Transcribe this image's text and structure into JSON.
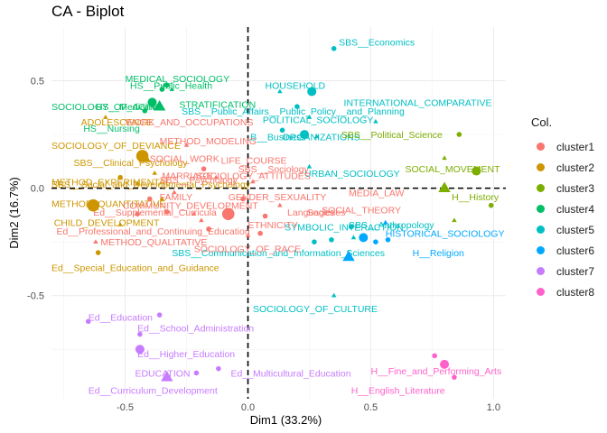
{
  "chart_data": {
    "type": "scatter",
    "title": "CA - Biplot",
    "xlabel": "Dim1 (33.2%)",
    "ylabel": "Dim2 (16.7%)",
    "xlim": [
      -0.8,
      1.05
    ],
    "ylim": [
      -0.98,
      0.75
    ],
    "xticks": [
      -0.5,
      0.0,
      0.5,
      1.0
    ],
    "xtick_labels": [
      "-0.5",
      "0.0",
      "0.5",
      "1.0"
    ],
    "yticks": [
      -0.5,
      0.0,
      0.5
    ],
    "ytick_labels": [
      "-0.5",
      "0.0",
      "0.5"
    ],
    "grid": true,
    "legend_position": "right",
    "legend_title": "Col.",
    "clusters": [
      {
        "name": "cluster1",
        "color": "#F8766D"
      },
      {
        "name": "cluster2",
        "color": "#CD9600"
      },
      {
        "name": "cluster3",
        "color": "#7CAE00"
      },
      {
        "name": "cluster4",
        "color": "#00BE67"
      },
      {
        "name": "cluster5",
        "color": "#00BFC4"
      },
      {
        "name": "cluster6",
        "color": "#00A9FF"
      },
      {
        "name": "cluster7",
        "color": "#C77CFF"
      },
      {
        "name": "cluster8",
        "color": "#FF61CC"
      }
    ],
    "labels": [
      {
        "text": "SBS__Economics",
        "x": 0.37,
        "y": 0.68,
        "cluster": "cluster5"
      },
      {
        "text": "HOUSEHOLD",
        "x": 0.07,
        "y": 0.48,
        "cluster": "cluster5"
      },
      {
        "text": "INTERNATIONAL_COMPARATIVE",
        "x": 0.39,
        "y": 0.4,
        "cluster": "cluster5"
      },
      {
        "text": "SBS__Public_Affairs__Public_Policy__and_Planning",
        "x": -0.27,
        "y": 0.36,
        "cluster": "cluster5"
      },
      {
        "text": "POLITICAL_SOCIOLOGY",
        "x": 0.06,
        "y": 0.32,
        "cluster": "cluster5"
      },
      {
        "text": "ORGANIZATIONS",
        "x": 0.14,
        "y": 0.24,
        "cluster": "cluster5"
      },
      {
        "text": "B__Business",
        "x": 0.01,
        "y": 0.24,
        "cluster": "cluster5"
      },
      {
        "text": "URBAN_SOCIOLOGY",
        "x": 0.23,
        "y": 0.07,
        "cluster": "cluster5"
      },
      {
        "text": "SYMBOLIC_INTERACTION",
        "x": 0.15,
        "y": -0.18,
        "cluster": "cluster5"
      },
      {
        "text": "SBS__Anthropology",
        "x": 0.41,
        "y": -0.17,
        "cluster": "cluster5"
      },
      {
        "text": "SBS__Communication_and_Information_Sciences",
        "x": -0.31,
        "y": -0.3,
        "cluster": "cluster5"
      },
      {
        "text": "SOCIOLOGY_OF_CULTURE",
        "x": 0.02,
        "y": -0.56,
        "cluster": "cluster5"
      },
      {
        "text": "H__Religion",
        "x": 0.67,
        "y": -0.3,
        "cluster": "cluster6"
      },
      {
        "text": "HISTORICAL_SOCIOLOGY",
        "x": 0.56,
        "y": -0.21,
        "cluster": "cluster6"
      },
      {
        "text": "SBS__Political_Science",
        "x": 0.38,
        "y": 0.25,
        "cluster": "cluster3"
      },
      {
        "text": "SOCIAL_MOVEMENT",
        "x": 0.64,
        "y": 0.09,
        "cluster": "cluster3"
      },
      {
        "text": "H__History",
        "x": 0.83,
        "y": -0.04,
        "cluster": "cluster3"
      },
      {
        "text": "MEDICAL_SOCIOLOGY",
        "x": -0.5,
        "y": 0.51,
        "cluster": "cluster4"
      },
      {
        "text": "HS__Public_Health",
        "x": -0.48,
        "y": 0.48,
        "cluster": "cluster4"
      },
      {
        "text": "STRATIFICATION",
        "x": -0.28,
        "y": 0.39,
        "cluster": "cluster4"
      },
      {
        "text": "SOCIOLOGY_OF_AGING",
        "x": -0.8,
        "y": 0.38,
        "cluster": "cluster4"
      },
      {
        "text": "HS__Medicine",
        "x": -0.62,
        "y": 0.38,
        "cluster": "cluster4"
      },
      {
        "text": "HS__Nursing",
        "x": -0.67,
        "y": 0.28,
        "cluster": "cluster4"
      },
      {
        "text": "ADOLESCENCE",
        "x": -0.68,
        "y": 0.31,
        "cluster": "cluster2"
      },
      {
        "text": "SOCIOLOGY_OF_DEVIANCE",
        "x": -0.8,
        "y": 0.2,
        "cluster": "cluster2"
      },
      {
        "text": "SBS__Clinical_Psychology",
        "x": -0.71,
        "y": 0.12,
        "cluster": "cluster2"
      },
      {
        "text": "METHOD_EXPERIMENTAL",
        "x": -0.8,
        "y": 0.03,
        "cluster": "cluster2"
      },
      {
        "text": "SBS__Social_and_Developmental_Psychology",
        "x": -0.8,
        "y": 0.02,
        "cluster": "cluster2"
      },
      {
        "text": "METHOD_QUANTITATIVE",
        "x": -0.8,
        "y": -0.07,
        "cluster": "cluster2"
      },
      {
        "text": "CHILD_DEVELOPMENT",
        "x": -0.79,
        "y": -0.16,
        "cluster": "cluster2"
      },
      {
        "text": "Ed__Special_Education_and_Guidance",
        "x": -0.8,
        "y": -0.37,
        "cluster": "cluster2"
      },
      {
        "text": "WORK_AND_OCCUPATIONS",
        "x": -0.5,
        "y": 0.31,
        "cluster": "cluster1"
      },
      {
        "text": "METHOD_MODELING",
        "x": -0.36,
        "y": 0.22,
        "cluster": "cluster1"
      },
      {
        "text": "SOCIAL_WORK",
        "x": -0.4,
        "y": 0.14,
        "cluster": "cluster1"
      },
      {
        "text": "LIFE_COURSE",
        "x": -0.11,
        "y": 0.13,
        "cluster": "cluster1"
      },
      {
        "text": "SBS__Sociology",
        "x": -0.04,
        "y": 0.09,
        "cluster": "cluster1"
      },
      {
        "text": "MARRIAGE",
        "x": -0.35,
        "y": 0.06,
        "cluster": "cluster1"
      },
      {
        "text": "SBS__Psychology",
        "x": -0.36,
        "y": 0.04,
        "cluster": "cluster1"
      },
      {
        "text": "SOCIOLOGY_ATTITUDES",
        "x": -0.21,
        "y": 0.06,
        "cluster": "cluster1"
      },
      {
        "text": "FAMILY",
        "x": -0.36,
        "y": -0.04,
        "cluster": "cluster1"
      },
      {
        "text": "GENDER_SEXUALITY",
        "x": -0.08,
        "y": -0.04,
        "cluster": "cluster1"
      },
      {
        "text": "MEDIA_LAW",
        "x": 0.41,
        "y": -0.02,
        "cluster": "cluster1"
      },
      {
        "text": "COMMUNITY_DEVELOPMENT",
        "x": -0.51,
        "y": -0.08,
        "cluster": "cluster1"
      },
      {
        "text": "Ed__Supplemental_Curricula",
        "x": -0.63,
        "y": -0.11,
        "cluster": "cluster1"
      },
      {
        "text": "Languages",
        "x": 0.16,
        "y": -0.11,
        "cluster": "cluster1"
      },
      {
        "text": "Societies",
        "x": 0.24,
        "y": -0.11,
        "cluster": "cluster1"
      },
      {
        "text": "SOCIAL_THEORY",
        "x": 0.3,
        "y": -0.1,
        "cluster": "cluster1"
      },
      {
        "text": "ETHNICITY",
        "x": 0.0,
        "y": -0.17,
        "cluster": "cluster1"
      },
      {
        "text": "Ed__Professional_and_Continuing_Education",
        "x": -0.78,
        "y": -0.2,
        "cluster": "cluster1"
      },
      {
        "text": "METHOD_QUALITATIVE",
        "x": -0.6,
        "y": -0.25,
        "cluster": "cluster1"
      },
      {
        "text": "SOCIOLOGY_OF_RACE",
        "x": -0.22,
        "y": -0.28,
        "cluster": "cluster1"
      },
      {
        "text": "Ed__Education",
        "x": -0.65,
        "y": -0.6,
        "cluster": "cluster7"
      },
      {
        "text": "Ed__School_Administration",
        "x": -0.45,
        "y": -0.65,
        "cluster": "cluster7"
      },
      {
        "text": "Ed__Higher_Education",
        "x": -0.45,
        "y": -0.77,
        "cluster": "cluster7"
      },
      {
        "text": "EDUCATION",
        "x": -0.46,
        "y": -0.86,
        "cluster": "cluster7"
      },
      {
        "text": "Ed__Multicultural_Education",
        "x": -0.07,
        "y": -0.86,
        "cluster": "cluster7"
      },
      {
        "text": "Ed__Curriculum_Development",
        "x": -0.65,
        "y": -0.94,
        "cluster": "cluster7"
      },
      {
        "text": "H__Fine_and_Performing_Arts",
        "x": 0.5,
        "y": -0.85,
        "cluster": "cluster8"
      },
      {
        "text": "H__English_Literature",
        "x": 0.42,
        "y": -0.94,
        "cluster": "cluster8"
      }
    ],
    "points": [
      {
        "x": 0.35,
        "y": 0.65,
        "cluster": "cluster5",
        "shape": "circle",
        "size": 1
      },
      {
        "x": 0.13,
        "y": 0.45,
        "cluster": "cluster5",
        "shape": "triangle",
        "size": 1
      },
      {
        "x": 0.26,
        "y": 0.45,
        "cluster": "cluster5",
        "shape": "circle",
        "size": 2
      },
      {
        "x": 0.2,
        "y": 0.38,
        "cluster": "cluster5",
        "shape": "circle",
        "size": 1
      },
      {
        "x": 0.25,
        "y": 0.33,
        "cluster": "cluster5",
        "shape": "triangle",
        "size": 1
      },
      {
        "x": 0.23,
        "y": 0.25,
        "cluster": "cluster5",
        "shape": "circle",
        "size": 2
      },
      {
        "x": 0.28,
        "y": 0.24,
        "cluster": "cluster5",
        "shape": "triangle",
        "size": 1
      },
      {
        "x": 0.52,
        "y": 0.31,
        "cluster": "cluster5",
        "shape": "triangle",
        "size": 1
      },
      {
        "x": 0.14,
        "y": 0.27,
        "cluster": "cluster5",
        "shape": "circle",
        "size": 1
      },
      {
        "x": 0.25,
        "y": 0.1,
        "cluster": "cluster5",
        "shape": "triangle",
        "size": 1
      },
      {
        "x": 0.42,
        "y": -0.18,
        "cluster": "cluster5",
        "shape": "circle",
        "size": 1
      },
      {
        "x": 0.43,
        "y": -0.23,
        "cluster": "cluster5",
        "shape": "triangle",
        "size": 1
      },
      {
        "x": 0.27,
        "y": -0.25,
        "cluster": "cluster5",
        "shape": "circle",
        "size": 1
      },
      {
        "x": 0.34,
        "y": -0.24,
        "cluster": "cluster5",
        "shape": "circle",
        "size": 1
      },
      {
        "x": 0.35,
        "y": -0.5,
        "cluster": "cluster5",
        "shape": "triangle",
        "size": 1
      },
      {
        "x": 0.47,
        "y": -0.23,
        "cluster": "cluster6",
        "shape": "circle",
        "size": 2
      },
      {
        "x": 0.52,
        "y": -0.25,
        "cluster": "cluster6",
        "shape": "circle",
        "size": 1
      },
      {
        "x": 0.41,
        "y": -0.32,
        "cluster": "cluster6",
        "shape": "triangle",
        "size": 3
      },
      {
        "x": 0.56,
        "y": -0.16,
        "cluster": "cluster6",
        "shape": "triangle",
        "size": 1
      },
      {
        "x": 0.57,
        "y": -0.24,
        "cluster": "cluster6",
        "shape": "circle",
        "size": 1
      },
      {
        "x": 0.86,
        "y": 0.25,
        "cluster": "cluster3",
        "shape": "circle",
        "size": 1
      },
      {
        "x": 0.93,
        "y": 0.08,
        "cluster": "cluster3",
        "shape": "circle",
        "size": 2
      },
      {
        "x": 0.8,
        "y": 0.14,
        "cluster": "cluster3",
        "shape": "triangle",
        "size": 1
      },
      {
        "x": 0.8,
        "y": 0.0,
        "cluster": "cluster3",
        "shape": "triangle",
        "size": 3
      },
      {
        "x": 0.84,
        "y": -0.15,
        "cluster": "cluster3",
        "shape": "triangle",
        "size": 1
      },
      {
        "x": 0.99,
        "y": -0.08,
        "cluster": "cluster3",
        "shape": "circle",
        "size": 1
      },
      {
        "x": -0.39,
        "y": 0.4,
        "cluster": "cluster4",
        "shape": "circle",
        "size": 2
      },
      {
        "x": -0.36,
        "y": 0.38,
        "cluster": "cluster4",
        "shape": "triangle",
        "size": 3
      },
      {
        "x": -0.35,
        "y": 0.46,
        "cluster": "cluster4",
        "shape": "circle",
        "size": 1
      },
      {
        "x": -0.34,
        "y": 0.48,
        "cluster": "cluster4",
        "shape": "triangle",
        "size": 1
      },
      {
        "x": -0.33,
        "y": 0.48,
        "cluster": "cluster4",
        "shape": "circle",
        "size": 1
      },
      {
        "x": -0.31,
        "y": 0.46,
        "cluster": "cluster4",
        "shape": "triangle",
        "size": 1
      },
      {
        "x": -0.42,
        "y": 0.36,
        "cluster": "cluster4",
        "shape": "circle",
        "size": 1
      },
      {
        "x": -0.58,
        "y": 0.33,
        "cluster": "cluster2",
        "shape": "triangle",
        "size": 1
      },
      {
        "x": -0.43,
        "y": 0.15,
        "cluster": "cluster2",
        "shape": "circle",
        "size": 3
      },
      {
        "x": -0.42,
        "y": 0.14,
        "cluster": "cluster2",
        "shape": "triangle",
        "size": 3
      },
      {
        "x": -0.38,
        "y": 0.07,
        "cluster": "cluster2",
        "shape": "triangle",
        "size": 1
      },
      {
        "x": -0.52,
        "y": 0.05,
        "cluster": "cluster2",
        "shape": "circle",
        "size": 1
      },
      {
        "x": -0.45,
        "y": 0.02,
        "cluster": "cluster2",
        "shape": "triangle",
        "size": 1
      },
      {
        "x": -0.63,
        "y": -0.08,
        "cluster": "cluster2",
        "shape": "circle",
        "size": 3
      },
      {
        "x": -0.61,
        "y": -0.3,
        "cluster": "cluster2",
        "shape": "circle",
        "size": 1
      },
      {
        "x": -0.52,
        "y": -0.17,
        "cluster": "cluster2",
        "shape": "triangle",
        "size": 1
      },
      {
        "x": -0.35,
        "y": -0.05,
        "cluster": "cluster2",
        "shape": "triangle",
        "size": 1
      },
      {
        "x": -0.22,
        "y": -0.12,
        "cluster": "cluster1",
        "shape": "triangle",
        "size": 1
      },
      {
        "x": -0.08,
        "y": -0.12,
        "cluster": "cluster1",
        "shape": "circle",
        "size": 3
      },
      {
        "x": -0.02,
        "y": -0.05,
        "cluster": "cluster1",
        "shape": "circle",
        "size": 1
      },
      {
        "x": 0.02,
        "y": 0.03,
        "cluster": "cluster1",
        "shape": "triangle",
        "size": 1
      },
      {
        "x": -0.13,
        "y": 0.05,
        "cluster": "cluster1",
        "shape": "triangle",
        "size": 1
      },
      {
        "x": -0.18,
        "y": 0.09,
        "cluster": "cluster1",
        "shape": "circle",
        "size": 1
      },
      {
        "x": -0.25,
        "y": 0.2,
        "cluster": "cluster1",
        "shape": "triangle",
        "size": 1
      },
      {
        "x": 0.05,
        "y": -0.21,
        "cluster": "cluster1",
        "shape": "circle",
        "size": 1
      },
      {
        "x": 0.0,
        "y": -0.22,
        "cluster": "cluster1",
        "shape": "triangle",
        "size": 1
      },
      {
        "x": -0.16,
        "y": -0.19,
        "cluster": "cluster1",
        "shape": "circle",
        "size": 1
      },
      {
        "x": 0.07,
        "y": -0.13,
        "cluster": "cluster1",
        "shape": "circle",
        "size": 1
      },
      {
        "x": 0.13,
        "y": -0.08,
        "cluster": "cluster1",
        "shape": "triangle",
        "size": 1
      },
      {
        "x": -0.3,
        "y": -0.02,
        "cluster": "cluster1",
        "shape": "triangle",
        "size": 1
      },
      {
        "x": -0.19,
        "y": -0.15,
        "cluster": "cluster1",
        "shape": "triangle",
        "size": 1
      },
      {
        "x": -0.45,
        "y": -0.12,
        "cluster": "cluster1",
        "shape": "circle",
        "size": 1
      },
      {
        "x": -0.4,
        "y": -0.05,
        "cluster": "cluster1",
        "shape": "circle",
        "size": 1
      },
      {
        "x": -0.33,
        "y": -0.11,
        "cluster": "cluster1",
        "shape": "circle",
        "size": 1
      },
      {
        "x": -0.62,
        "y": -0.25,
        "cluster": "cluster1",
        "shape": "triangle",
        "size": 1
      },
      {
        "x": -0.44,
        "y": -0.68,
        "cluster": "cluster7",
        "shape": "circle",
        "size": 1
      },
      {
        "x": -0.44,
        "y": -0.75,
        "cluster": "cluster7",
        "shape": "circle",
        "size": 2
      },
      {
        "x": -0.65,
        "y": -0.62,
        "cluster": "cluster7",
        "shape": "circle",
        "size": 1
      },
      {
        "x": -0.36,
        "y": -0.59,
        "cluster": "cluster7",
        "shape": "circle",
        "size": 1
      },
      {
        "x": -0.33,
        "y": -0.88,
        "cluster": "cluster7",
        "shape": "triangle",
        "size": 3
      },
      {
        "x": -0.21,
        "y": -0.86,
        "cluster": "cluster7",
        "shape": "circle",
        "size": 1
      },
      {
        "x": -0.12,
        "y": -0.84,
        "cluster": "cluster7",
        "shape": "circle",
        "size": 1
      },
      {
        "x": 0.76,
        "y": -0.78,
        "cluster": "cluster8",
        "shape": "circle",
        "size": 1
      },
      {
        "x": 0.8,
        "y": -0.82,
        "cluster": "cluster8",
        "shape": "circle",
        "size": 2
      },
      {
        "x": 0.84,
        "y": -0.88,
        "cluster": "cluster8",
        "shape": "circle",
        "size": 1
      }
    ]
  }
}
